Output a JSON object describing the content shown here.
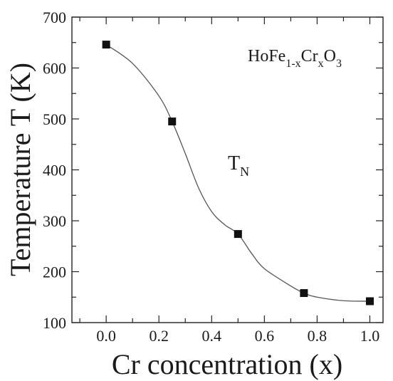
{
  "chart_data": {
    "type": "scatter",
    "title": "",
    "xlabel": "Cr concentration (x)",
    "ylabel": "Temperature T (K)",
    "xlim": [
      -0.13,
      1.05
    ],
    "ylim": [
      100,
      700
    ],
    "x_ticks": [
      "0.0",
      "0.2",
      "0.4",
      "0.6",
      "0.8",
      "1.0"
    ],
    "y_ticks": [
      "100",
      "200",
      "300",
      "400",
      "500",
      "600",
      "700"
    ],
    "x_tick_values": [
      0.0,
      0.2,
      0.4,
      0.6,
      0.8,
      1.0
    ],
    "y_tick_values": [
      100,
      200,
      300,
      400,
      500,
      600,
      700
    ],
    "series": [
      {
        "name": "",
        "x": [
          0.0,
          0.25,
          0.5,
          0.75,
          1.0
        ],
        "y": [
          646,
          495,
          274,
          158,
          142
        ],
        "marker": "square",
        "color": "#111111"
      }
    ],
    "fit_curve": {
      "x": [
        0.0,
        0.1,
        0.2,
        0.25,
        0.3,
        0.35,
        0.4,
        0.45,
        0.5,
        0.55,
        0.6,
        0.7,
        0.75,
        0.8,
        0.9,
        1.0
      ],
      "y": [
        646,
        609,
        545,
        495,
        432,
        365,
        318,
        292,
        274,
        237,
        206,
        172,
        158,
        150,
        143,
        142
      ],
      "color": "#555555"
    },
    "annotations": {
      "compound": {
        "base": [
          "HoFe",
          "Cr",
          "O"
        ],
        "subs": [
          "1-x",
          "x",
          "3"
        ]
      },
      "transition": {
        "base": "T",
        "sub": "N"
      }
    },
    "grid": false,
    "legend": "none"
  }
}
